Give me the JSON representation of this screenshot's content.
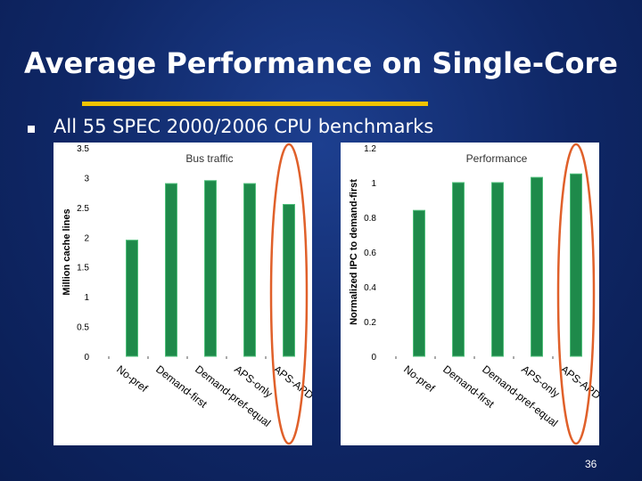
{
  "slide": {
    "title": "Average Performance on Single-Core",
    "bullet": "All 55 SPEC 2000/2006 CPU benchmarks",
    "page_number": "36"
  },
  "colors": {
    "bar": "#1e8a4a",
    "bar_highlight": "#4fbf7a",
    "ellipse": "#e0602a",
    "panel": "#ffffff"
  },
  "chart_data": [
    {
      "type": "bar",
      "title": "Bus traffic",
      "ylabel": "Million cache lines",
      "xlabel": "",
      "categories": [
        "No-pref",
        "Demand-first",
        "Demand-pref-equal",
        "APS-only",
        "APS-APD (PADC)"
      ],
      "values": [
        1.95,
        2.9,
        2.95,
        2.9,
        2.55
      ],
      "ylim": [
        0,
        3.5
      ],
      "yticks": [
        "0",
        "0.5",
        "1",
        "1.5",
        "2",
        "2.5",
        "3",
        "3.5"
      ],
      "ytick_values": [
        0,
        0.5,
        1,
        1.5,
        2,
        2.5,
        3,
        3.5
      ],
      "highlight": "APS-APD (PADC)"
    },
    {
      "type": "bar",
      "title": "Performance",
      "ylabel": "Normalized IPC to demand-first",
      "xlabel": "",
      "categories": [
        "No-pref",
        "Demand-first",
        "Demand-pref-equal",
        "APS-only",
        "APS-APD (PADC)"
      ],
      "values": [
        0.84,
        1.0,
        1.0,
        1.03,
        1.05
      ],
      "ylim": [
        0,
        1.2
      ],
      "yticks": [
        "0",
        "0.2",
        "0.4",
        "0.6",
        "0.8",
        "1",
        "1.2"
      ],
      "ytick_values": [
        0,
        0.2,
        0.4,
        0.6,
        0.8,
        1.0,
        1.2
      ],
      "highlight": "APS-APD (PADC)"
    }
  ]
}
